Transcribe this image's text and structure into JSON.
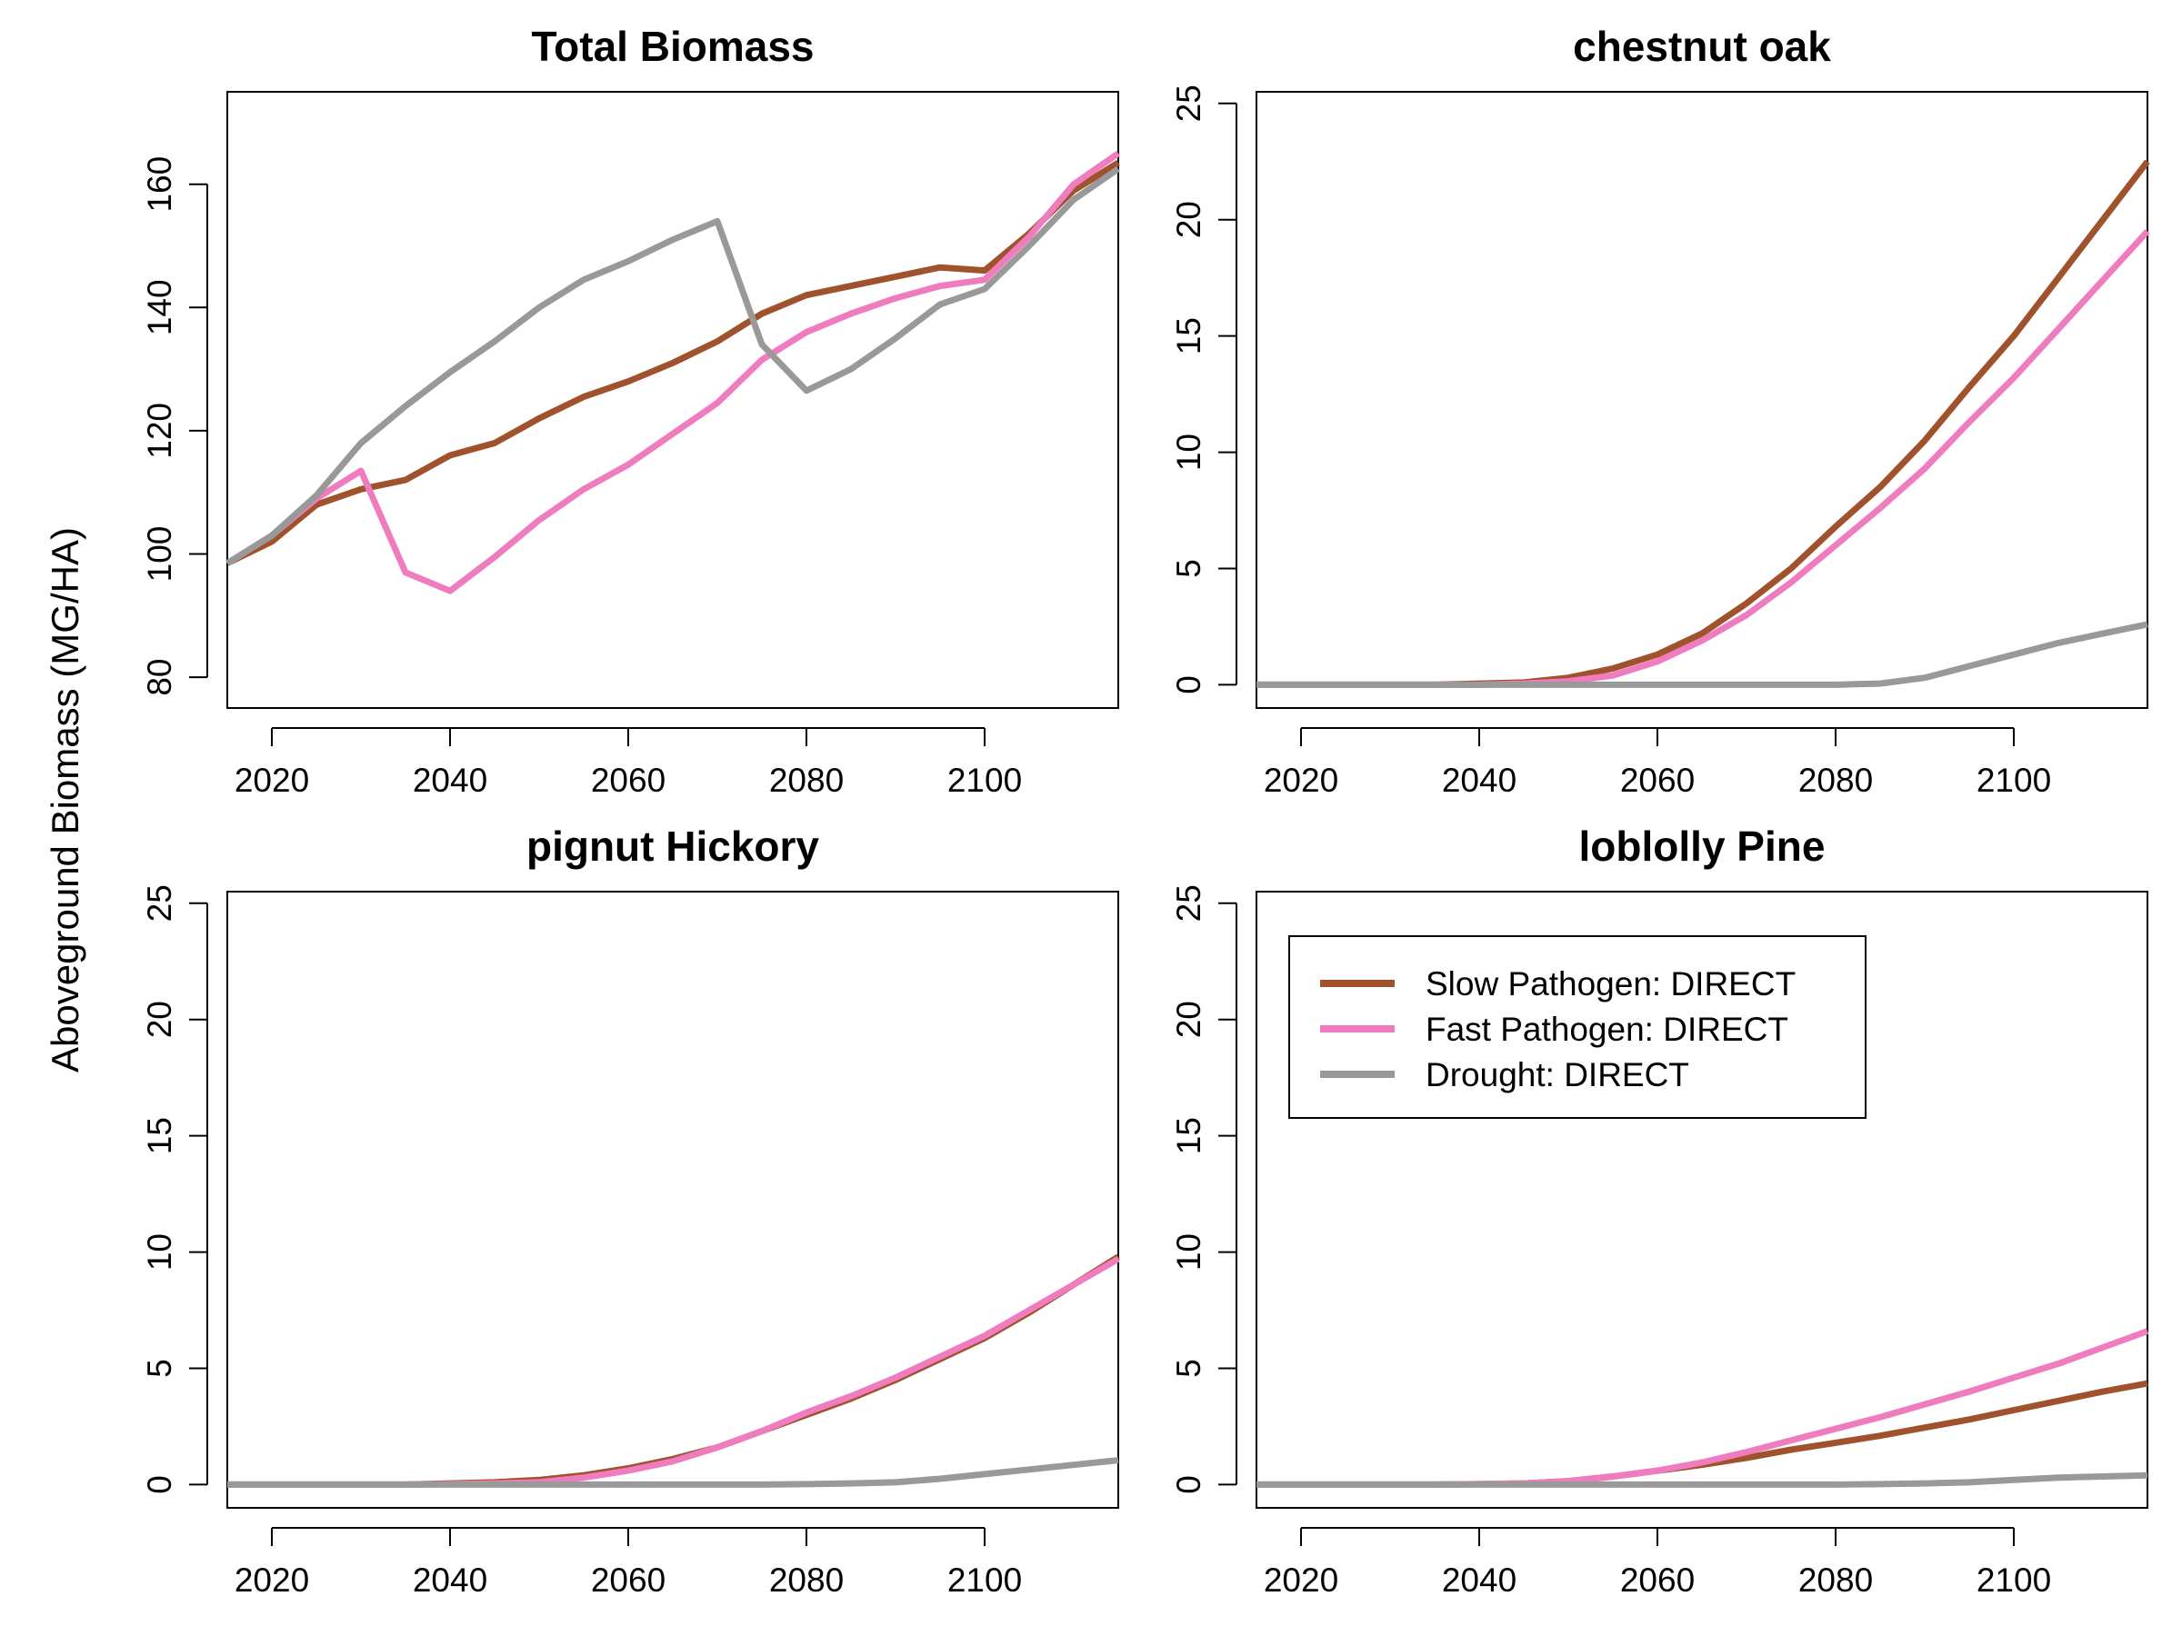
{
  "figure": {
    "ylabel": "Aboveground Biomass (MG/HA)"
  },
  "chart_data": [
    {
      "type": "line",
      "title": "Total Biomass",
      "xlabel": "",
      "ylabel": "Aboveground Biomass (MG/HA)",
      "xlim": [
        2015,
        2115
      ],
      "ylim": [
        75,
        175
      ],
      "xticks": [
        2020,
        2040,
        2060,
        2080,
        2100
      ],
      "yticks": [
        80,
        100,
        120,
        140,
        160
      ],
      "x": [
        2015,
        2020,
        2025,
        2030,
        2035,
        2040,
        2045,
        2050,
        2055,
        2060,
        2065,
        2070,
        2075,
        2080,
        2085,
        2090,
        2095,
        2100,
        2105,
        2110,
        2115
      ],
      "series": [
        {
          "name": "Slow Pathogen: DIRECT",
          "color": "#a0522d",
          "values": [
            98.5,
            102,
            108,
            110.5,
            112,
            116,
            118,
            122,
            125.5,
            128,
            131,
            134.5,
            139,
            142,
            143.5,
            145,
            146.5,
            146,
            152,
            159,
            163.5
          ]
        },
        {
          "name": "Fast Pathogen: DIRECT",
          "color": "#f07cc0",
          "values": [
            98.5,
            103,
            109,
            113.5,
            97,
            94,
            99.5,
            105.5,
            110.5,
            114.5,
            119.5,
            124.5,
            131.5,
            136,
            139,
            141.5,
            143.5,
            144.5,
            151.5,
            160,
            165
          ]
        },
        {
          "name": "Drought: DIRECT",
          "color": "#999999",
          "values": [
            98.5,
            103,
            109.5,
            118,
            124,
            129.5,
            134.5,
            140,
            144.5,
            147.5,
            151,
            154,
            134,
            126.5,
            130,
            135,
            140.5,
            143,
            150,
            157.5,
            162.5
          ]
        }
      ]
    },
    {
      "type": "line",
      "title": "chestnut oak",
      "xlabel": "",
      "ylabel": "",
      "xlim": [
        2015,
        2115
      ],
      "ylim": [
        -1,
        25.5
      ],
      "xticks": [
        2020,
        2040,
        2060,
        2080,
        2100
      ],
      "yticks": [
        0,
        5,
        10,
        15,
        20,
        25
      ],
      "x": [
        2015,
        2020,
        2025,
        2030,
        2035,
        2040,
        2045,
        2050,
        2055,
        2060,
        2065,
        2070,
        2075,
        2080,
        2085,
        2090,
        2095,
        2100,
        2105,
        2110,
        2115
      ],
      "series": [
        {
          "name": "Slow Pathogen: DIRECT",
          "color": "#a0522d",
          "values": [
            0,
            0,
            0,
            0,
            0,
            0.05,
            0.1,
            0.3,
            0.7,
            1.3,
            2.2,
            3.5,
            5,
            6.8,
            8.5,
            10.5,
            12.8,
            15,
            17.5,
            20,
            22.5
          ]
        },
        {
          "name": "Fast Pathogen: DIRECT",
          "color": "#f07cc0",
          "values": [
            0,
            0,
            0,
            0,
            0,
            0,
            0.05,
            0.15,
            0.4,
            1,
            1.9,
            3,
            4.4,
            6,
            7.6,
            9.3,
            11.3,
            13.2,
            15.3,
            17.4,
            19.5
          ]
        },
        {
          "name": "Drought: DIRECT",
          "color": "#999999",
          "values": [
            0,
            0,
            0,
            0,
            0,
            0,
            0,
            0,
            0,
            0,
            0,
            0,
            0,
            0,
            0.05,
            0.3,
            0.8,
            1.3,
            1.8,
            2.2,
            2.6
          ]
        }
      ]
    },
    {
      "type": "line",
      "title": "pignut Hickory",
      "xlabel": "",
      "ylabel": "",
      "xlim": [
        2015,
        2115
      ],
      "ylim": [
        -1,
        25.5
      ],
      "xticks": [
        2020,
        2040,
        2060,
        2080,
        2100
      ],
      "yticks": [
        0,
        5,
        10,
        15,
        20,
        25
      ],
      "x": [
        2015,
        2020,
        2025,
        2030,
        2035,
        2040,
        2045,
        2050,
        2055,
        2060,
        2065,
        2070,
        2075,
        2080,
        2085,
        2090,
        2095,
        2100,
        2105,
        2110,
        2115
      ],
      "series": [
        {
          "name": "Slow Pathogen: DIRECT",
          "color": "#a0522d",
          "values": [
            0,
            0,
            0,
            0,
            0,
            0.05,
            0.1,
            0.2,
            0.4,
            0.7,
            1.1,
            1.6,
            2.3,
            3,
            3.7,
            4.5,
            5.4,
            6.3,
            7.4,
            8.6,
            9.8
          ]
        },
        {
          "name": "Fast Pathogen: DIRECT",
          "color": "#f07cc0",
          "values": [
            0,
            0,
            0,
            0,
            0,
            0.02,
            0.05,
            0.1,
            0.3,
            0.6,
            1,
            1.6,
            2.3,
            3.1,
            3.8,
            4.6,
            5.5,
            6.4,
            7.5,
            8.6,
            9.7
          ]
        },
        {
          "name": "Drought: DIRECT",
          "color": "#999999",
          "values": [
            0,
            0,
            0,
            0,
            0,
            0,
            0,
            0,
            0,
            0,
            0,
            0,
            0,
            0.02,
            0.05,
            0.1,
            0.25,
            0.45,
            0.65,
            0.85,
            1.05
          ]
        }
      ]
    },
    {
      "type": "line",
      "title": "loblolly Pine",
      "xlabel": "",
      "ylabel": "",
      "xlim": [
        2015,
        2115
      ],
      "ylim": [
        -1,
        25.5
      ],
      "xticks": [
        2020,
        2040,
        2060,
        2080,
        2100
      ],
      "yticks": [
        0,
        5,
        10,
        15,
        20,
        25
      ],
      "legend": {
        "placement": "top-left"
      },
      "x": [
        2015,
        2020,
        2025,
        2030,
        2035,
        2040,
        2045,
        2050,
        2055,
        2060,
        2065,
        2070,
        2075,
        2080,
        2085,
        2090,
        2095,
        2100,
        2105,
        2110,
        2115
      ],
      "series": [
        {
          "name": "Slow Pathogen: DIRECT",
          "color": "#a0522d",
          "values": [
            0,
            0,
            0,
            0,
            0,
            0.02,
            0.05,
            0.15,
            0.35,
            0.6,
            0.85,
            1.15,
            1.5,
            1.8,
            2.1,
            2.45,
            2.8,
            3.2,
            3.6,
            4,
            4.35
          ]
        },
        {
          "name": "Fast Pathogen: DIRECT",
          "color": "#f07cc0",
          "values": [
            0,
            0,
            0,
            0,
            0,
            0.02,
            0.05,
            0.15,
            0.35,
            0.6,
            0.95,
            1.4,
            1.9,
            2.4,
            2.9,
            3.45,
            4,
            4.6,
            5.2,
            5.9,
            6.6
          ]
        },
        {
          "name": "Drought: DIRECT",
          "color": "#999999",
          "values": [
            0,
            0,
            0,
            0,
            0,
            0,
            0,
            0,
            0,
            0,
            0,
            0,
            0,
            0,
            0.02,
            0.05,
            0.1,
            0.2,
            0.3,
            0.35,
            0.4
          ]
        }
      ]
    }
  ]
}
